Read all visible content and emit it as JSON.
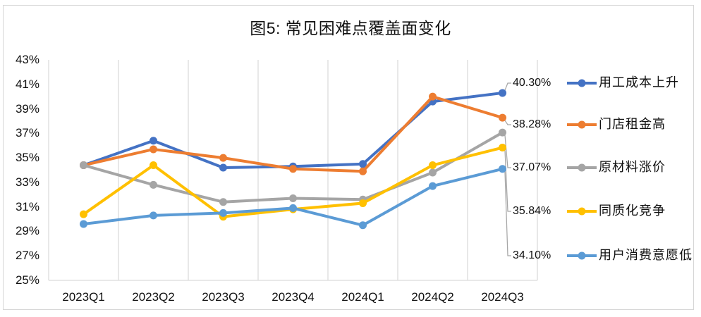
{
  "chart_data": {
    "type": "line",
    "title": "图5: 常见困难点覆盖面变化",
    "categories": [
      "2023Q1",
      "2023Q2",
      "2023Q3",
      "2023Q4",
      "2024Q1",
      "2024Q2",
      "2024Q3"
    ],
    "series": [
      {
        "name": "用工成本上升",
        "color": "#4472C4",
        "values": [
          34.4,
          36.4,
          34.2,
          34.3,
          34.5,
          39.6,
          40.3
        ],
        "end_label": "40.30%"
      },
      {
        "name": "门店租金高",
        "color": "#ED7D31",
        "values": [
          34.4,
          35.7,
          35.0,
          34.1,
          33.9,
          40.0,
          38.28
        ],
        "end_label": "38.28%"
      },
      {
        "name": "原材料涨价",
        "color": "#A5A5A5",
        "values": [
          34.4,
          32.8,
          31.4,
          31.7,
          31.6,
          33.8,
          37.07
        ],
        "end_label": "37.07%"
      },
      {
        "name": "同质化竞争",
        "color": "#FFC000",
        "values": [
          30.4,
          34.4,
          30.2,
          30.8,
          31.3,
          34.4,
          35.84
        ],
        "end_label": "35.84%"
      },
      {
        "name": "用户消费意愿低",
        "color": "#5B9BD5",
        "values": [
          29.6,
          30.3,
          30.5,
          30.9,
          29.5,
          32.7,
          34.1
        ],
        "end_label": "34.10%"
      }
    ],
    "y_axis": {
      "min": 25,
      "max": 43,
      "step": 2,
      "ticks": [
        "43%",
        "41%",
        "39%",
        "37%",
        "35%",
        "33%",
        "31%",
        "29%",
        "27%",
        "25%"
      ]
    },
    "x_axis": {
      "ticks": [
        "2023Q1",
        "2023Q2",
        "2023Q3",
        "2023Q4",
        "2024Q1",
        "2024Q2",
        "2024Q3"
      ]
    },
    "grid": "vertical-only",
    "legend_position": "right",
    "colors": {
      "gridline": "#D9D9D9",
      "axis_line": "#D9D9D9",
      "leader_line": "#A6A6A6",
      "frame_border": "#D6D6D6",
      "text": "#111111"
    }
  }
}
